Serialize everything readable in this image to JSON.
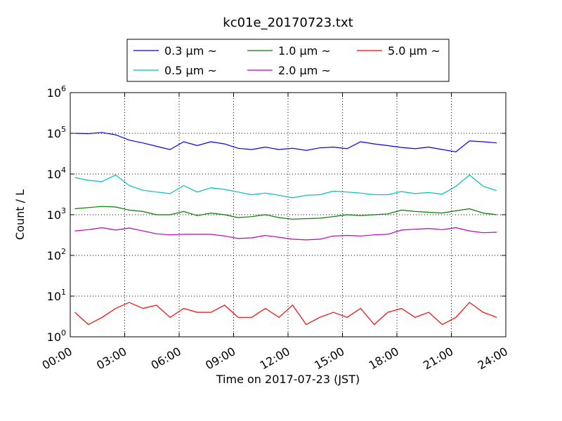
{
  "chart_data": {
    "type": "line",
    "title": "kc01e_20170723.txt",
    "xlabel": "Time on 2017-07-23 (JST)",
    "ylabel": "Count / L",
    "y_scale": "log",
    "ylim": [
      1,
      1000000
    ],
    "xlim": [
      "00:00",
      "24:00"
    ],
    "x_ticks": [
      "00:00",
      "03:00",
      "06:00",
      "09:00",
      "12:00",
      "15:00",
      "18:00",
      "21:00",
      "24:00"
    ],
    "y_ticks": [
      {
        "base": "10",
        "exp": "0",
        "value": 1
      },
      {
        "base": "10",
        "exp": "1",
        "value": 10
      },
      {
        "base": "10",
        "exp": "2",
        "value": 100
      },
      {
        "base": "10",
        "exp": "3",
        "value": 1000
      },
      {
        "base": "10",
        "exp": "4",
        "value": 10000
      },
      {
        "base": "10",
        "exp": "5",
        "value": 100000
      },
      {
        "base": "10",
        "exp": "6",
        "value": 1000000
      }
    ],
    "grid": true,
    "legend_position": "top-center",
    "x_hours": [
      0.25,
      1,
      1.75,
      2.5,
      3.25,
      4,
      4.75,
      5.5,
      6.25,
      7,
      7.75,
      8.5,
      9.25,
      10,
      10.75,
      11.5,
      12.25,
      13,
      13.75,
      14.5,
      15.25,
      16,
      16.75,
      17.5,
      18.25,
      19,
      19.75,
      20.5,
      21.25,
      22,
      22.75,
      23.5
    ],
    "series": [
      {
        "name": "0.3 μm ~",
        "color": "#0000ff",
        "values": [
          100000,
          98000,
          105000,
          92000,
          68000,
          58000,
          48000,
          40000,
          62000,
          50000,
          62000,
          55000,
          43000,
          40000,
          46000,
          40000,
          43000,
          38000,
          44000,
          46000,
          42000,
          62000,
          55000,
          50000,
          45000,
          42000,
          46000,
          40000,
          35000,
          65000,
          62000,
          58000
        ]
      },
      {
        "name": "0.5 μm ~",
        "color": "#00bfbf",
        "values": [
          8200,
          7000,
          6500,
          9500,
          5200,
          4000,
          3600,
          3300,
          5200,
          3600,
          4600,
          4200,
          3600,
          3100,
          3400,
          3000,
          2600,
          3000,
          3100,
          3800,
          3600,
          3400,
          3100,
          3100,
          3700,
          3300,
          3500,
          3200,
          5000,
          9500,
          5000,
          3900
        ]
      },
      {
        "name": "1.0 μm ~",
        "color": "#008000",
        "values": [
          1400,
          1500,
          1600,
          1550,
          1300,
          1200,
          1000,
          1000,
          1200,
          950,
          1100,
          1000,
          850,
          900,
          1000,
          850,
          780,
          800,
          820,
          900,
          1000,
          950,
          1000,
          1050,
          1300,
          1200,
          1150,
          1100,
          1250,
          1400,
          1100,
          1000
        ]
      },
      {
        "name": "2.0 μm ~",
        "color": "#bf00bf",
        "values": [
          400,
          430,
          480,
          420,
          470,
          400,
          340,
          320,
          330,
          330,
          330,
          300,
          260,
          270,
          310,
          280,
          250,
          240,
          250,
          300,
          310,
          300,
          320,
          330,
          420,
          440,
          460,
          430,
          480,
          400,
          360,
          370
        ]
      },
      {
        "name": "5.0 μm ~",
        "color": "#ff0000",
        "values": [
          4,
          2,
          3,
          5,
          7,
          5,
          6,
          3,
          5,
          4,
          4,
          6,
          3,
          3,
          5,
          3,
          6,
          2,
          3,
          4,
          3,
          5,
          2,
          4,
          5,
          3,
          4,
          2,
          3,
          7,
          4,
          3
        ]
      }
    ]
  }
}
